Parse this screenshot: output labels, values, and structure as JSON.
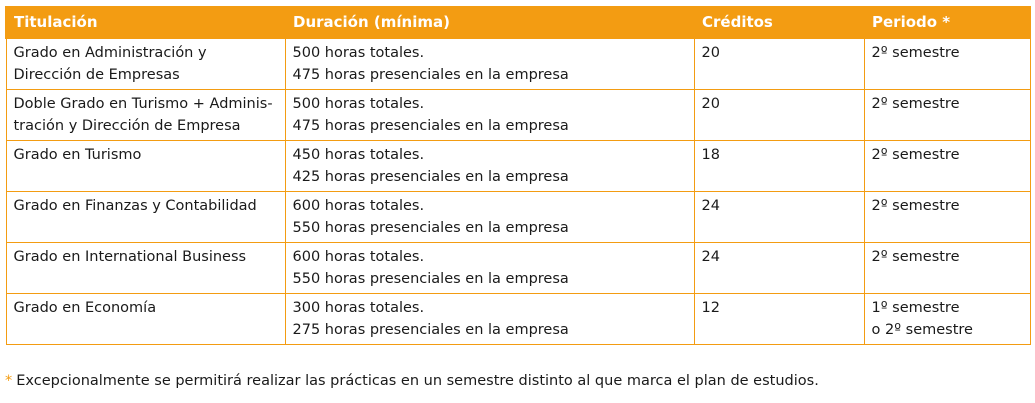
{
  "table": {
    "headers": [
      "Titulación",
      "Duración (mínima)",
      "Créditos",
      "Periodo *"
    ],
    "rows": [
      {
        "titulacion": [
          "Grado en Administración y",
          "Dirección de Empresas"
        ],
        "duracion": [
          "500 horas totales.",
          "475 horas presenciales en la empresa"
        ],
        "creditos": "20",
        "periodo": [
          "2º semestre"
        ]
      },
      {
        "titulacion": [
          "Doble Grado en Turismo + Adminis-",
          "tración y Dirección de Empresa"
        ],
        "duracion": [
          "500 horas totales.",
          "475 horas presenciales en la empresa"
        ],
        "creditos": "20",
        "periodo": [
          "2º semestre"
        ]
      },
      {
        "titulacion": [
          "Grado en Turismo"
        ],
        "duracion": [
          "450 horas totales.",
          "425 horas presenciales en la empresa"
        ],
        "creditos": "18",
        "periodo": [
          "2º semestre"
        ]
      },
      {
        "titulacion": [
          "Grado en Finanzas y Contabilidad"
        ],
        "duracion": [
          "600 horas totales.",
          "550 horas presenciales en la empresa"
        ],
        "creditos": "24",
        "periodo": [
          "2º semestre"
        ]
      },
      {
        "titulacion": [
          "Grado en International Business"
        ],
        "duracion": [
          "600 horas totales.",
          "550 horas presenciales en la empresa"
        ],
        "creditos": "24",
        "periodo": [
          "2º semestre"
        ]
      },
      {
        "titulacion": [
          "Grado en Economía"
        ],
        "duracion": [
          "300 horas totales.",
          "275 horas presenciales en la empresa"
        ],
        "creditos": "12",
        "periodo": [
          "1º semestre",
          "o 2º semestre"
        ]
      }
    ]
  },
  "footnote": {
    "marker": "*",
    "text": "Excepcionalmente se permitirá realizar las prácticas en un semestre distinto al que marca el plan de estudios."
  },
  "colors": {
    "accent": "#f39c12",
    "header_text": "#ffffff",
    "body_text": "#1a1a1a"
  }
}
